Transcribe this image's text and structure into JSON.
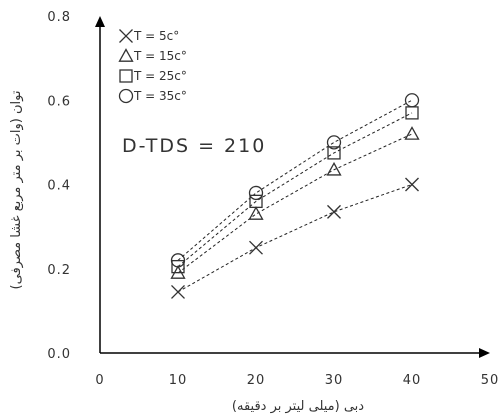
{
  "chart_data": {
    "type": "scatter",
    "x": [
      10,
      20,
      30,
      40
    ],
    "series": [
      {
        "name": "T = 5c°",
        "marker": "x",
        "values": [
          0.145,
          0.25,
          0.335,
          0.4
        ]
      },
      {
        "name": "T = 15c°",
        "marker": "triangle",
        "values": [
          0.19,
          0.33,
          0.435,
          0.52
        ]
      },
      {
        "name": "T = 25c°",
        "marker": "square",
        "values": [
          0.205,
          0.36,
          0.475,
          0.57
        ]
      },
      {
        "name": "T = 35c°",
        "marker": "circle",
        "values": [
          0.22,
          0.38,
          0.5,
          0.6
        ]
      }
    ],
    "fit_lines": "dashed",
    "xlim": [
      0,
      50
    ],
    "ylim": [
      0.0,
      0.8
    ],
    "xticks": [
      0,
      10,
      20,
      30,
      40,
      50
    ],
    "yticks": [
      0.0,
      0.2,
      0.4,
      0.6,
      0.8
    ],
    "xtick_labels": [
      "0",
      "10",
      "20",
      "30",
      "40",
      "50"
    ],
    "ytick_labels": [
      "0.0",
      "0.2",
      "0.4",
      "0.6",
      "0.8"
    ],
    "xlabel": "دبی (میلی لیتر بر دقیقه)",
    "ylabel": "توان (وات بر متر مربع غشا مصرفی)",
    "annotation": "D-TDS = 210",
    "legend_placement": "top-left",
    "grid": false,
    "colors": {
      "axis": "#000000",
      "markers": "#333333",
      "text": "#333333"
    }
  }
}
